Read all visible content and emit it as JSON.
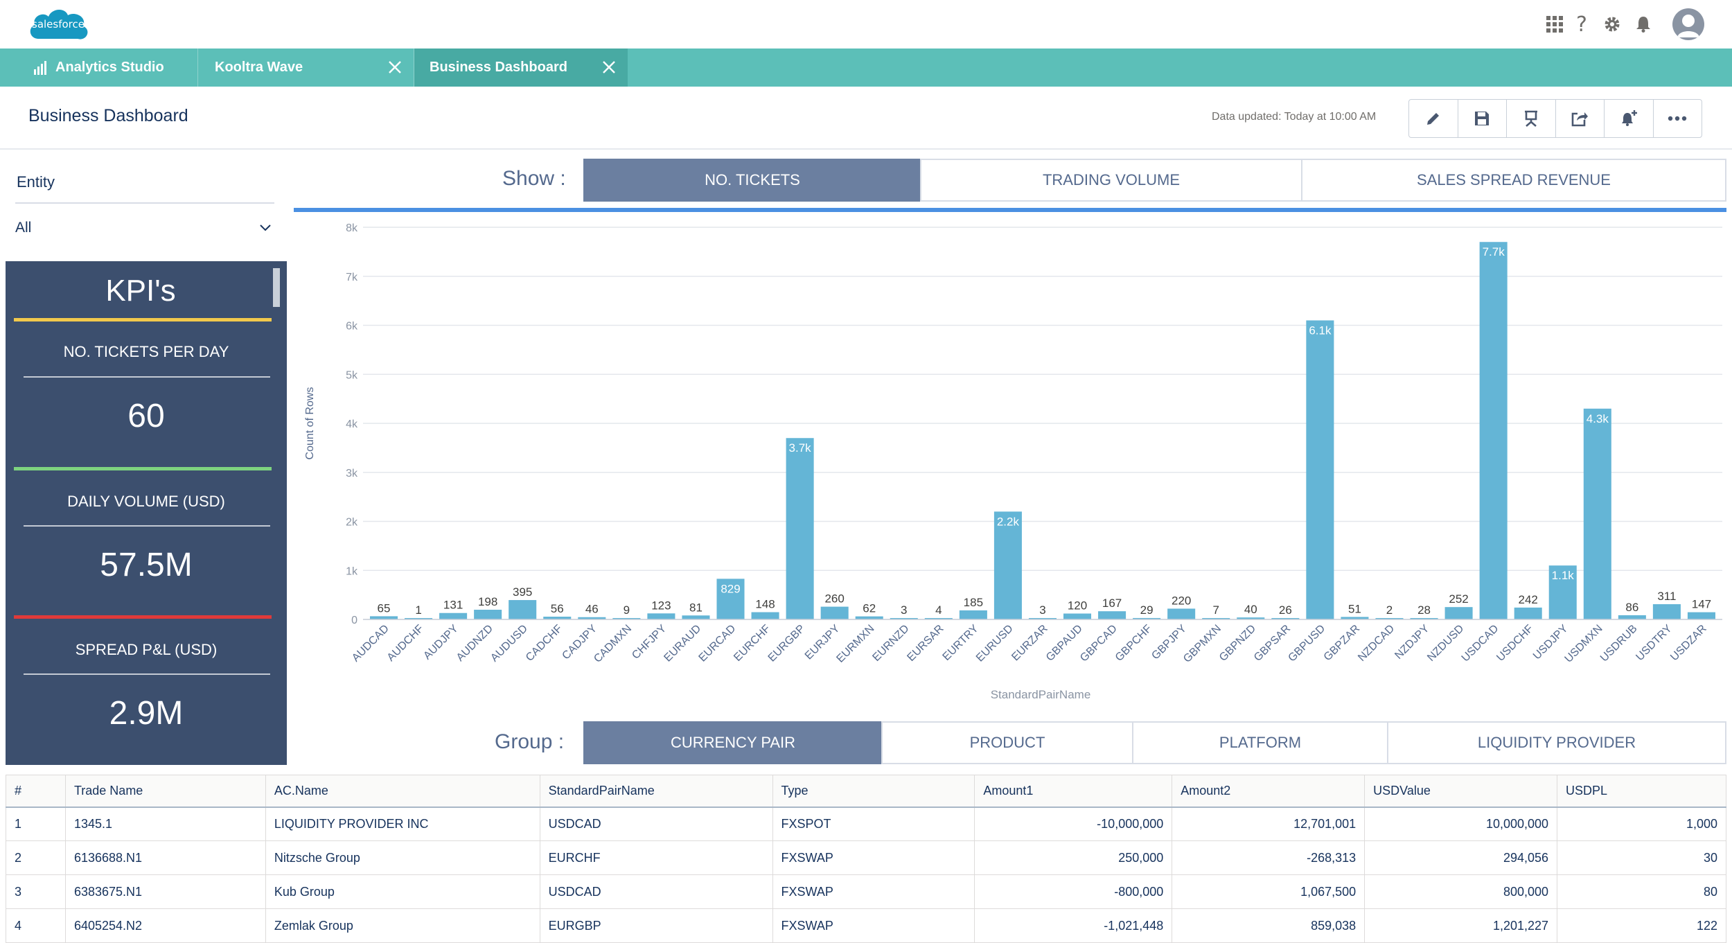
{
  "header": {
    "logo_text": "salesforce",
    "icons": [
      "app-launcher-icon",
      "help-icon",
      "setup-gear-icon",
      "notifications-bell-icon",
      "user-avatar-icon"
    ]
  },
  "tabs": [
    {
      "label": "Analytics Studio",
      "icon": "bar-chart-icon",
      "closable": false
    },
    {
      "label": "Kooltra Wave",
      "closable": true
    },
    {
      "label": "Business Dashboard",
      "closable": true,
      "active": true
    }
  ],
  "dashboard": {
    "title": "Business Dashboard",
    "data_updated": "Data updated: Today at 10:00 AM",
    "tools": [
      "edit-pencil-icon",
      "save-disk-icon",
      "present-icon",
      "share-icon",
      "subscribe-bell-icon",
      "more-actions-icon"
    ]
  },
  "filter": {
    "label": "Entity",
    "value": "All"
  },
  "kpi": {
    "title": "KPI's",
    "items": [
      {
        "label": "NO. TICKETS PER DAY",
        "value": "60",
        "accent": "#f2c94c"
      },
      {
        "label": "DAILY VOLUME (USD)",
        "value": "57.5M",
        "accent": "#7ed37f"
      },
      {
        "label": "SPREAD P&L (USD)",
        "value": "2.9M",
        "accent": "#e03a3a"
      }
    ]
  },
  "show": {
    "label": "Show :",
    "options": [
      "NO. TICKETS",
      "TRADING VOLUME",
      "SALES SPREAD REVENUE"
    ],
    "active": "NO. TICKETS"
  },
  "group": {
    "label": "Group :",
    "options": [
      "CURRENCY PAIR",
      "PRODUCT",
      "PLATFORM",
      "LIQUIDITY PROVIDER"
    ],
    "active": "CURRENCY PAIR"
  },
  "chart_data": {
    "type": "bar",
    "xlabel": "StandardPairName",
    "ylabel": "Count of Rows",
    "ylim": [
      0,
      8000
    ],
    "yticks": [
      "0",
      "1k",
      "2k",
      "3k",
      "4k",
      "5k",
      "6k",
      "7k",
      "8k"
    ],
    "grid": true,
    "bar_color": "#64b5d6",
    "categories": [
      "AUDCAD",
      "AUDCHF",
      "AUDJPY",
      "AUDNZD",
      "AUDUSD",
      "CADCHF",
      "CADJPY",
      "CADMXN",
      "CHFJPY",
      "EURAUD",
      "EURCAD",
      "EURCHF",
      "EURGBP",
      "EURJPY",
      "EURMXN",
      "EURNZD",
      "EURSAR",
      "EURTRY",
      "EURUSD",
      "EURZAR",
      "GBPAUD",
      "GBPCAD",
      "GBPCHF",
      "GBPJPY",
      "GBPMXN",
      "GBPNZD",
      "GBPSAR",
      "GBPUSD",
      "GBPZAR",
      "NZDCAD",
      "NZDJPY",
      "NZDUSD",
      "USDCAD",
      "USDCHF",
      "USDJPY",
      "USDMXN",
      "USDRUB",
      "USDTRY",
      "USDZAR"
    ],
    "values": [
      65,
      1,
      131,
      198,
      395,
      56,
      46,
      9,
      123,
      81,
      829,
      148,
      3700,
      260,
      62,
      3,
      4,
      185,
      2200,
      3,
      120,
      167,
      29,
      220,
      7,
      40,
      26,
      6100,
      51,
      2,
      28,
      252,
      7700,
      242,
      1100,
      4300,
      86,
      311,
      147
    ],
    "labels": [
      "65",
      "1",
      "131",
      "198",
      "395",
      "56",
      "46",
      "9",
      "123",
      "81",
      "829",
      "148",
      "3.7k",
      "260",
      "62",
      "3",
      "4",
      "185",
      "2.2k",
      "3",
      "120",
      "167",
      "29",
      "220",
      "7",
      "40",
      "26",
      "6.1k",
      "51",
      "2",
      "28",
      "252",
      "7.7k",
      "242",
      "1.1k",
      "4.3k",
      "86",
      "311",
      "147"
    ]
  },
  "table": {
    "columns": [
      "#",
      "Trade Name",
      "AC.Name",
      "StandardPairName",
      "Type",
      "Amount1",
      "Amount2",
      "USDValue",
      "USDPL"
    ],
    "rows": [
      [
        "1",
        "1345.1",
        "LIQUIDITY PROVIDER INC",
        "USDCAD",
        "FXSPOT",
        "-10,000,000",
        "12,701,001",
        "10,000,000",
        "1,000"
      ],
      [
        "2",
        "6136688.N1",
        "Nitzsche Group",
        "EURCHF",
        "FXSWAP",
        "250,000",
        "-268,313",
        "294,056",
        "30"
      ],
      [
        "3",
        "6383675.N1",
        "Kub Group",
        "USDCAD",
        "FXSWAP",
        "-800,000",
        "1,067,500",
        "800,000",
        "80"
      ],
      [
        "4",
        "6405254.N2",
        "Zemlak Group",
        "EURGBP",
        "FXSWAP",
        "-1,021,448",
        "859,038",
        "1,201,227",
        "122"
      ]
    ]
  }
}
